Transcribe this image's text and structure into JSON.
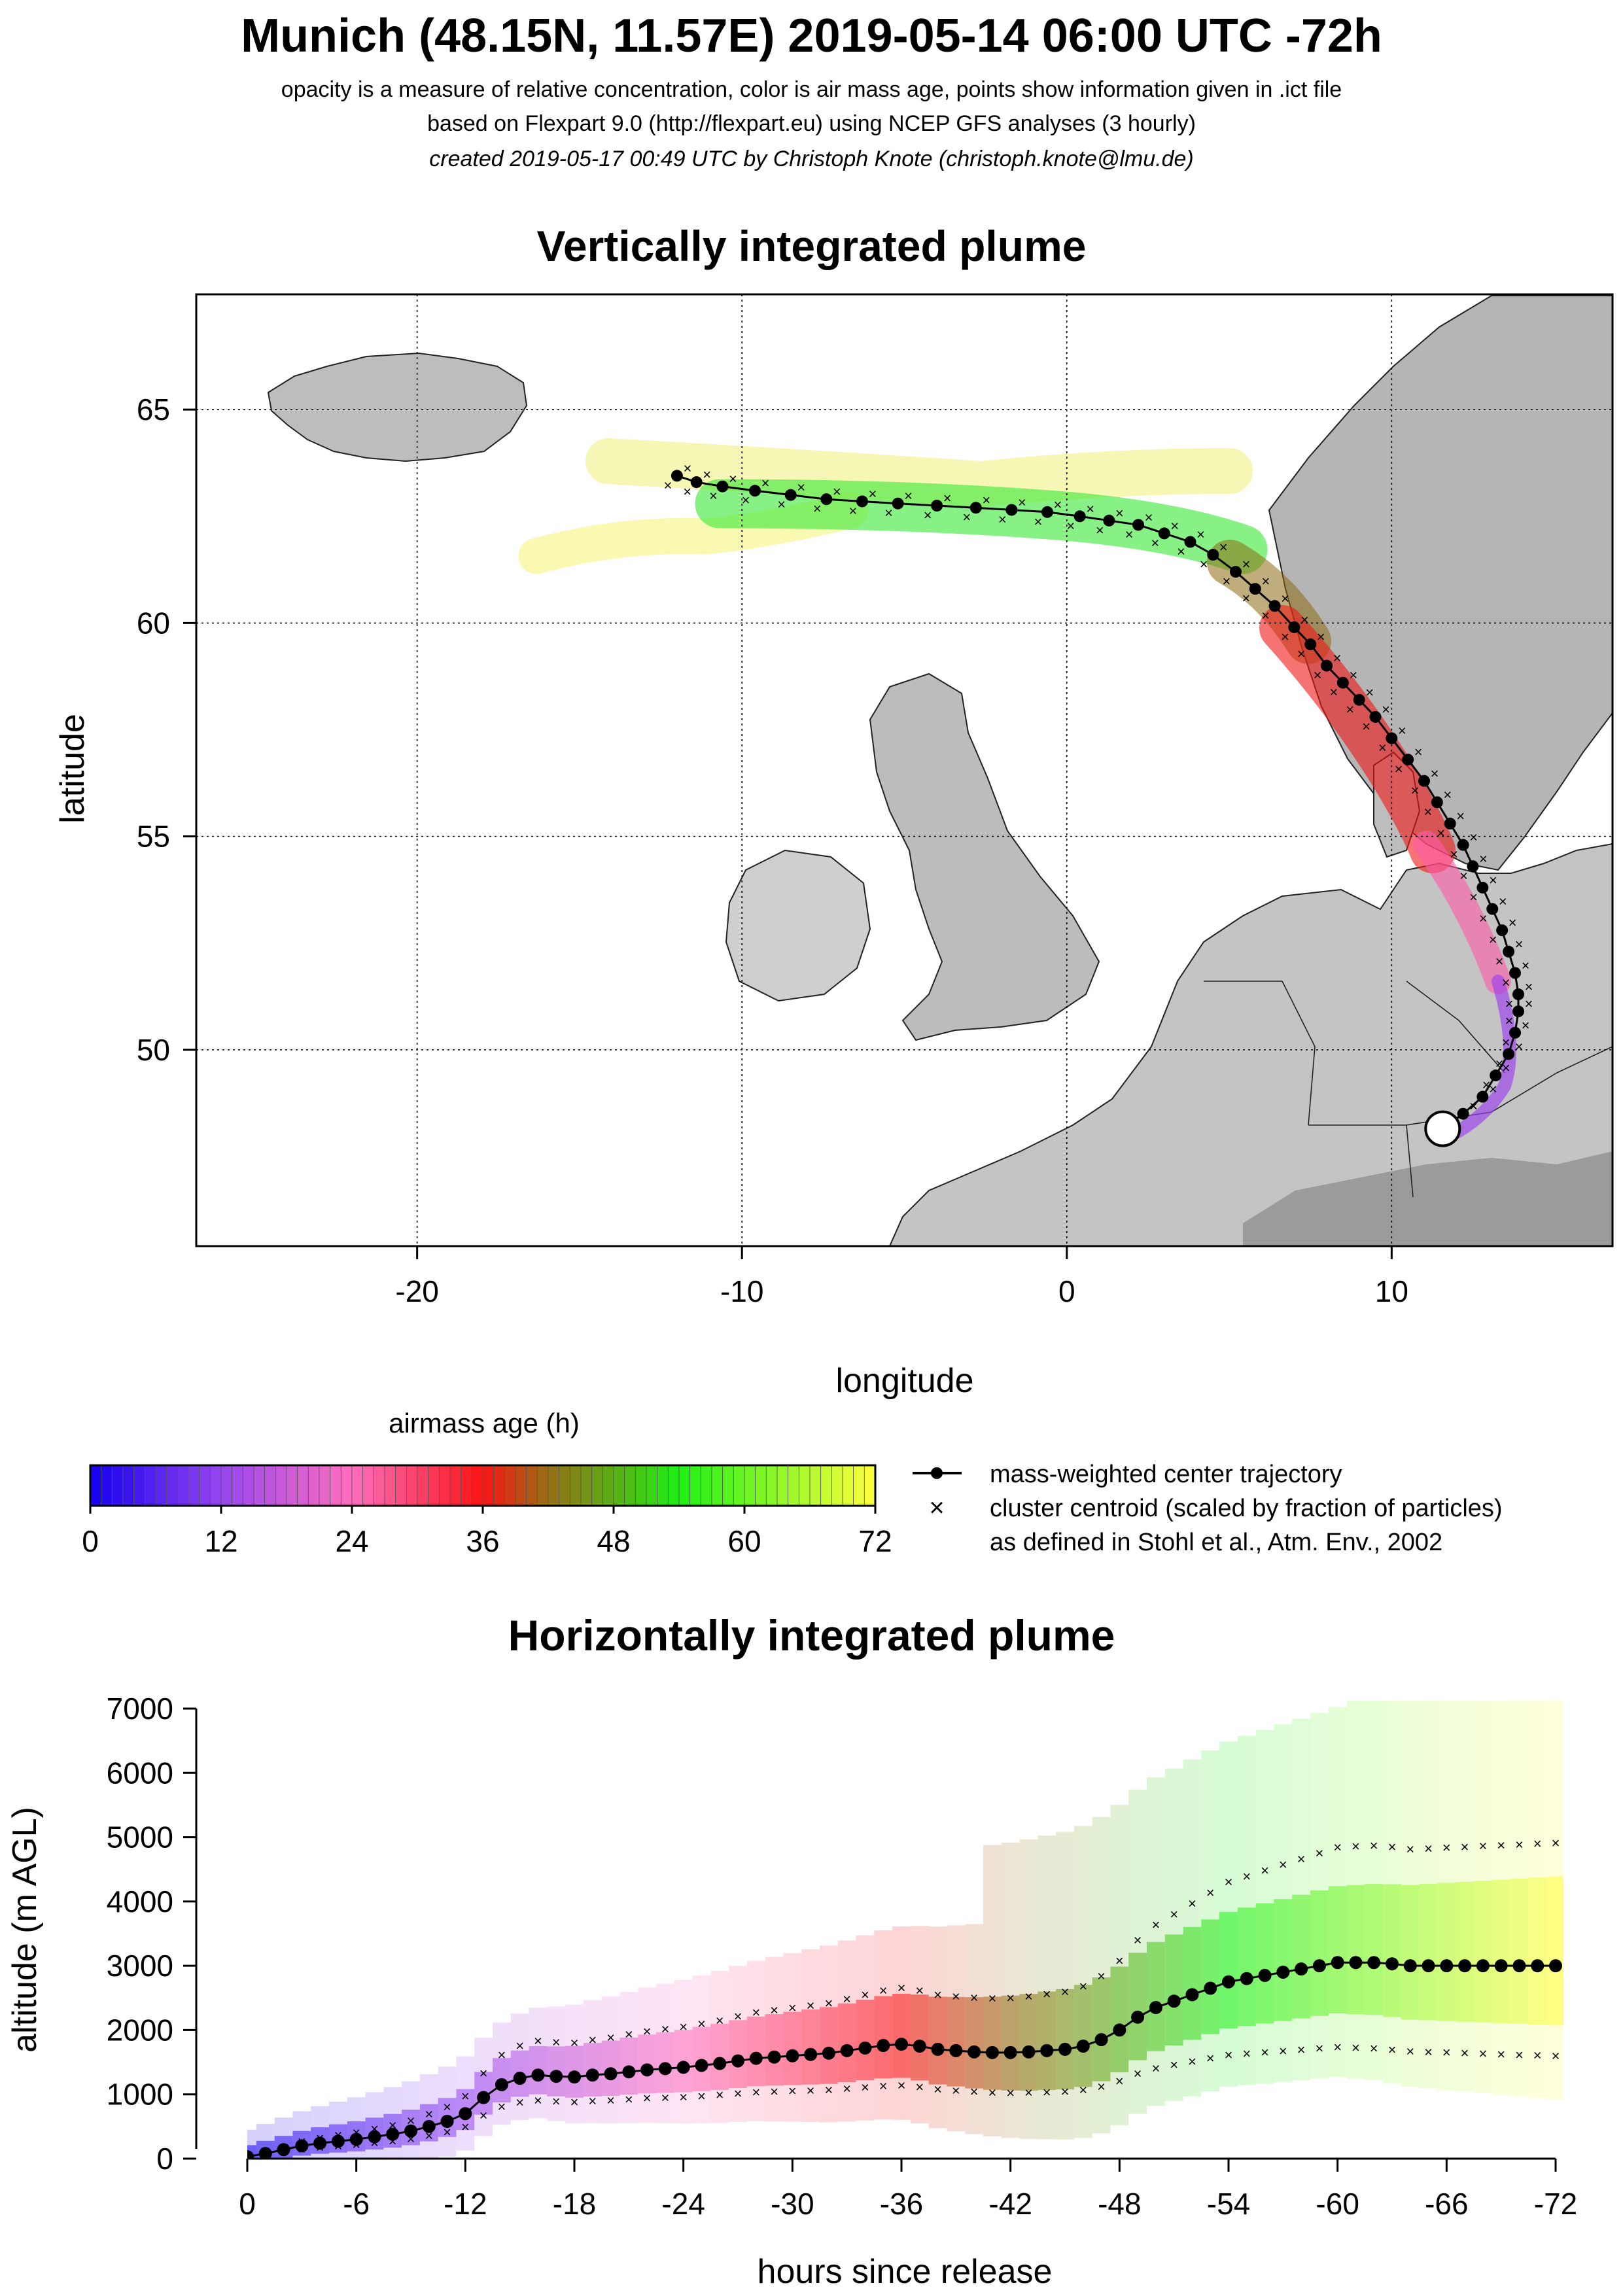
{
  "header": {
    "title": "Munich (48.15N, 11.57E) 2019-05-14 06:00 UTC -72h",
    "line1": "opacity is a measure of relative concentration, color is air mass age, points show information given in .ict file",
    "line2": "based on Flexpart 9.0 (http://flexpart.eu) using NCEP GFS analyses (3 hourly)",
    "line3": "created 2019-05-17 00:49 UTC by Christoph Knote (christoph.knote@lmu.de)"
  },
  "colors": {
    "young": "#2a00e8",
    "mid": "#ff1010",
    "old": "#ffff50",
    "center": "#000000"
  },
  "chart_data": [
    {
      "type": "scatter",
      "title": "Vertically integrated plume",
      "xlabel": "longitude",
      "ylabel": "latitude",
      "xlim": [
        -26.8,
        16.8
      ],
      "ylim": [
        45.4,
        67.7
      ],
      "xticks": [
        -20,
        -10,
        0,
        10
      ],
      "yticks": [
        50,
        55,
        60,
        65
      ],
      "xtick_labels": [
        "-20",
        "-10",
        "0",
        "10"
      ],
      "ytick_labels": [
        "50",
        "55",
        "60",
        "65"
      ],
      "grid": true,
      "release_point": {
        "lon": 11.57,
        "lat": 48.15
      },
      "series": [
        {
          "name": "mass-weighted center trajectory",
          "x": [
            11.6,
            12.2,
            12.8,
            13.2,
            13.6,
            13.8,
            13.9,
            13.9,
            13.8,
            13.6,
            13.4,
            13.1,
            12.8,
            12.5,
            12.2,
            11.8,
            11.4,
            11.0,
            10.5,
            10.0,
            9.5,
            9.0,
            8.5,
            8.0,
            7.5,
            7.0,
            6.4,
            5.8,
            5.2,
            4.5,
            3.8,
            3.0,
            2.2,
            1.3,
            0.4,
            -0.6,
            -1.7,
            -2.8,
            -4.0,
            -5.2,
            -6.3,
            -7.4,
            -8.5,
            -9.6,
            -10.6,
            -11.4,
            -12.0
          ],
          "y": [
            48.15,
            48.5,
            48.9,
            49.4,
            49.9,
            50.4,
            50.9,
            51.3,
            51.8,
            52.3,
            52.8,
            53.3,
            53.8,
            54.3,
            54.8,
            55.3,
            55.8,
            56.3,
            56.8,
            57.3,
            57.8,
            58.2,
            58.6,
            59.0,
            59.5,
            59.9,
            60.4,
            60.8,
            61.2,
            61.6,
            61.9,
            62.1,
            62.3,
            62.4,
            62.5,
            62.6,
            62.65,
            62.7,
            62.75,
            62.8,
            62.85,
            62.9,
            63.0,
            63.1,
            63.2,
            63.3,
            63.45
          ]
        }
      ]
    },
    {
      "type": "heatmap",
      "title": "airmass age (h)",
      "categories": [
        "0",
        "12",
        "24",
        "36",
        "48",
        "60",
        "72"
      ],
      "range": [
        0,
        72
      ]
    },
    {
      "type": "scatter",
      "title": "Horizontally integrated plume",
      "xlabel": "hours since release",
      "ylabel": "altitude (m AGL)",
      "xlim": [
        0,
        -72
      ],
      "ylim": [
        0,
        7000
      ],
      "xtick_labels": [
        "0",
        "-6",
        "-12",
        "-18",
        "-24",
        "-30",
        "-36",
        "-42",
        "-48",
        "-54",
        "-60",
        "-66",
        "-72"
      ],
      "ytick_labels": [
        "0",
        "1000",
        "2000",
        "3000",
        "4000",
        "5000",
        "6000",
        "7000"
      ],
      "series": [
        {
          "name": "mass-weighted center trajectory",
          "x": [
            0,
            -1,
            -2,
            -3,
            -4,
            -5,
            -6,
            -7,
            -8,
            -9,
            -10,
            -11,
            -12,
            -13,
            -14,
            -15,
            -16,
            -17,
            -18,
            -19,
            -20,
            -21,
            -22,
            -23,
            -24,
            -25,
            -26,
            -27,
            -28,
            -29,
            -30,
            -31,
            -32,
            -33,
            -34,
            -35,
            -36,
            -37,
            -38,
            -39,
            -40,
            -41,
            -42,
            -43,
            -44,
            -45,
            -46,
            -47,
            -48,
            -49,
            -50,
            -51,
            -52,
            -53,
            -54,
            -55,
            -56,
            -57,
            -58,
            -59,
            -60,
            -61,
            -62,
            -63,
            -64,
            -65,
            -66,
            -67,
            -68,
            -69,
            -70,
            -71,
            -72
          ],
          "y": [
            30,
            80,
            140,
            200,
            240,
            270,
            300,
            340,
            380,
            430,
            500,
            580,
            700,
            950,
            1150,
            1250,
            1300,
            1280,
            1270,
            1300,
            1320,
            1350,
            1380,
            1400,
            1420,
            1450,
            1480,
            1520,
            1560,
            1580,
            1600,
            1620,
            1640,
            1680,
            1720,
            1760,
            1780,
            1750,
            1700,
            1680,
            1660,
            1650,
            1650,
            1660,
            1680,
            1700,
            1750,
            1850,
            2000,
            2200,
            2350,
            2450,
            2550,
            2650,
            2750,
            2800,
            2850,
            2900,
            2950,
            3000,
            3050,
            3050,
            3050,
            3030,
            3000,
            3000,
            3000,
            3000,
            3000,
            3000,
            3000,
            3000,
            3000
          ]
        }
      ]
    }
  ],
  "legend": {
    "line1": "mass-weighted center trajectory",
    "line2": "cluster centroid (scaled by fraction of particles)",
    "line3": "as defined in Stohl et al., Atm. Env., 2002",
    "cross_symbol": "×"
  }
}
